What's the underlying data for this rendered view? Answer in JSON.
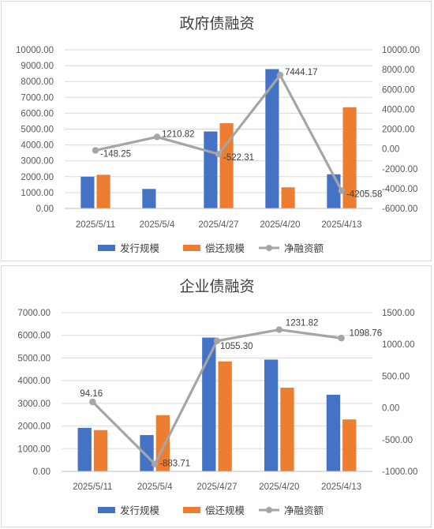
{
  "chart_data": [
    {
      "type": "bar",
      "title": "政府债融资",
      "categories": [
        "2025/5/11",
        "2025/5/4",
        "2025/4/27",
        "2025/4/20",
        "2025/4/13"
      ],
      "series": [
        {
          "name": "发行规模",
          "kind": "bar",
          "axis": "left",
          "values": [
            2000,
            1230,
            4850,
            8780,
            2150
          ],
          "color": "#4472C4"
        },
        {
          "name": "偿还规模",
          "kind": "bar",
          "axis": "left",
          "values": [
            2120,
            0,
            5370,
            1330,
            6370
          ],
          "color": "#ED7D31"
        },
        {
          "name": "净融资额",
          "kind": "line",
          "axis": "right",
          "values": [
            -148.25,
            1210.82,
            -522.31,
            7444.17,
            -4205.58
          ],
          "labels": [
            "-148.25",
            "1210.82",
            "-522.31",
            "7444.17",
            "-4205.58"
          ],
          "color": "#A5A5A5"
        }
      ],
      "left_axis": {
        "min": 0,
        "max": 10000,
        "step": 1000,
        "ticks": [
          "0.00",
          "1000.00",
          "2000.00",
          "3000.00",
          "4000.00",
          "5000.00",
          "6000.00",
          "7000.00",
          "8000.00",
          "9000.00",
          "10000.00"
        ]
      },
      "right_axis": {
        "min": -6000,
        "max": 10000,
        "step": 2000,
        "ticks": [
          "-6000.00",
          "-4000.00",
          "-2000.00",
          "0.00",
          "2000.00",
          "4000.00",
          "6000.00",
          "8000.00",
          "10000.00"
        ]
      },
      "grid": true,
      "legend": "bottom"
    },
    {
      "type": "bar",
      "title": "企业债融资",
      "categories": [
        "2025/5/11",
        "2025/5/4",
        "2025/4/27",
        "2025/4/20",
        "2025/4/13"
      ],
      "series": [
        {
          "name": "发行规模",
          "kind": "bar",
          "axis": "left",
          "values": [
            1920,
            1600,
            5900,
            4930,
            3380
          ],
          "color": "#4472C4"
        },
        {
          "name": "偿还规模",
          "kind": "bar",
          "axis": "left",
          "values": [
            1820,
            2480,
            4850,
            3690,
            2290
          ],
          "color": "#ED7D31"
        },
        {
          "name": "净融资额",
          "kind": "line",
          "axis": "right",
          "values": [
            94.16,
            -883.71,
            1055.3,
            1231.82,
            1098.76
          ],
          "labels": [
            "94.16",
            "-883.71",
            "1055.30",
            "1231.82",
            "1098.76"
          ],
          "color": "#A5A5A5"
        }
      ],
      "left_axis": {
        "min": 0,
        "max": 7000,
        "step": 1000,
        "ticks": [
          "0.00",
          "1000.00",
          "2000.00",
          "3000.00",
          "4000.00",
          "5000.00",
          "6000.00",
          "7000.00"
        ]
      },
      "right_axis": {
        "min": -1000,
        "max": 1500,
        "step": 500,
        "ticks": [
          "-1000.00",
          "-500.00",
          "0.00",
          "500.00",
          "1000.00",
          "1500.00"
        ]
      },
      "grid": true,
      "legend": "bottom"
    }
  ]
}
